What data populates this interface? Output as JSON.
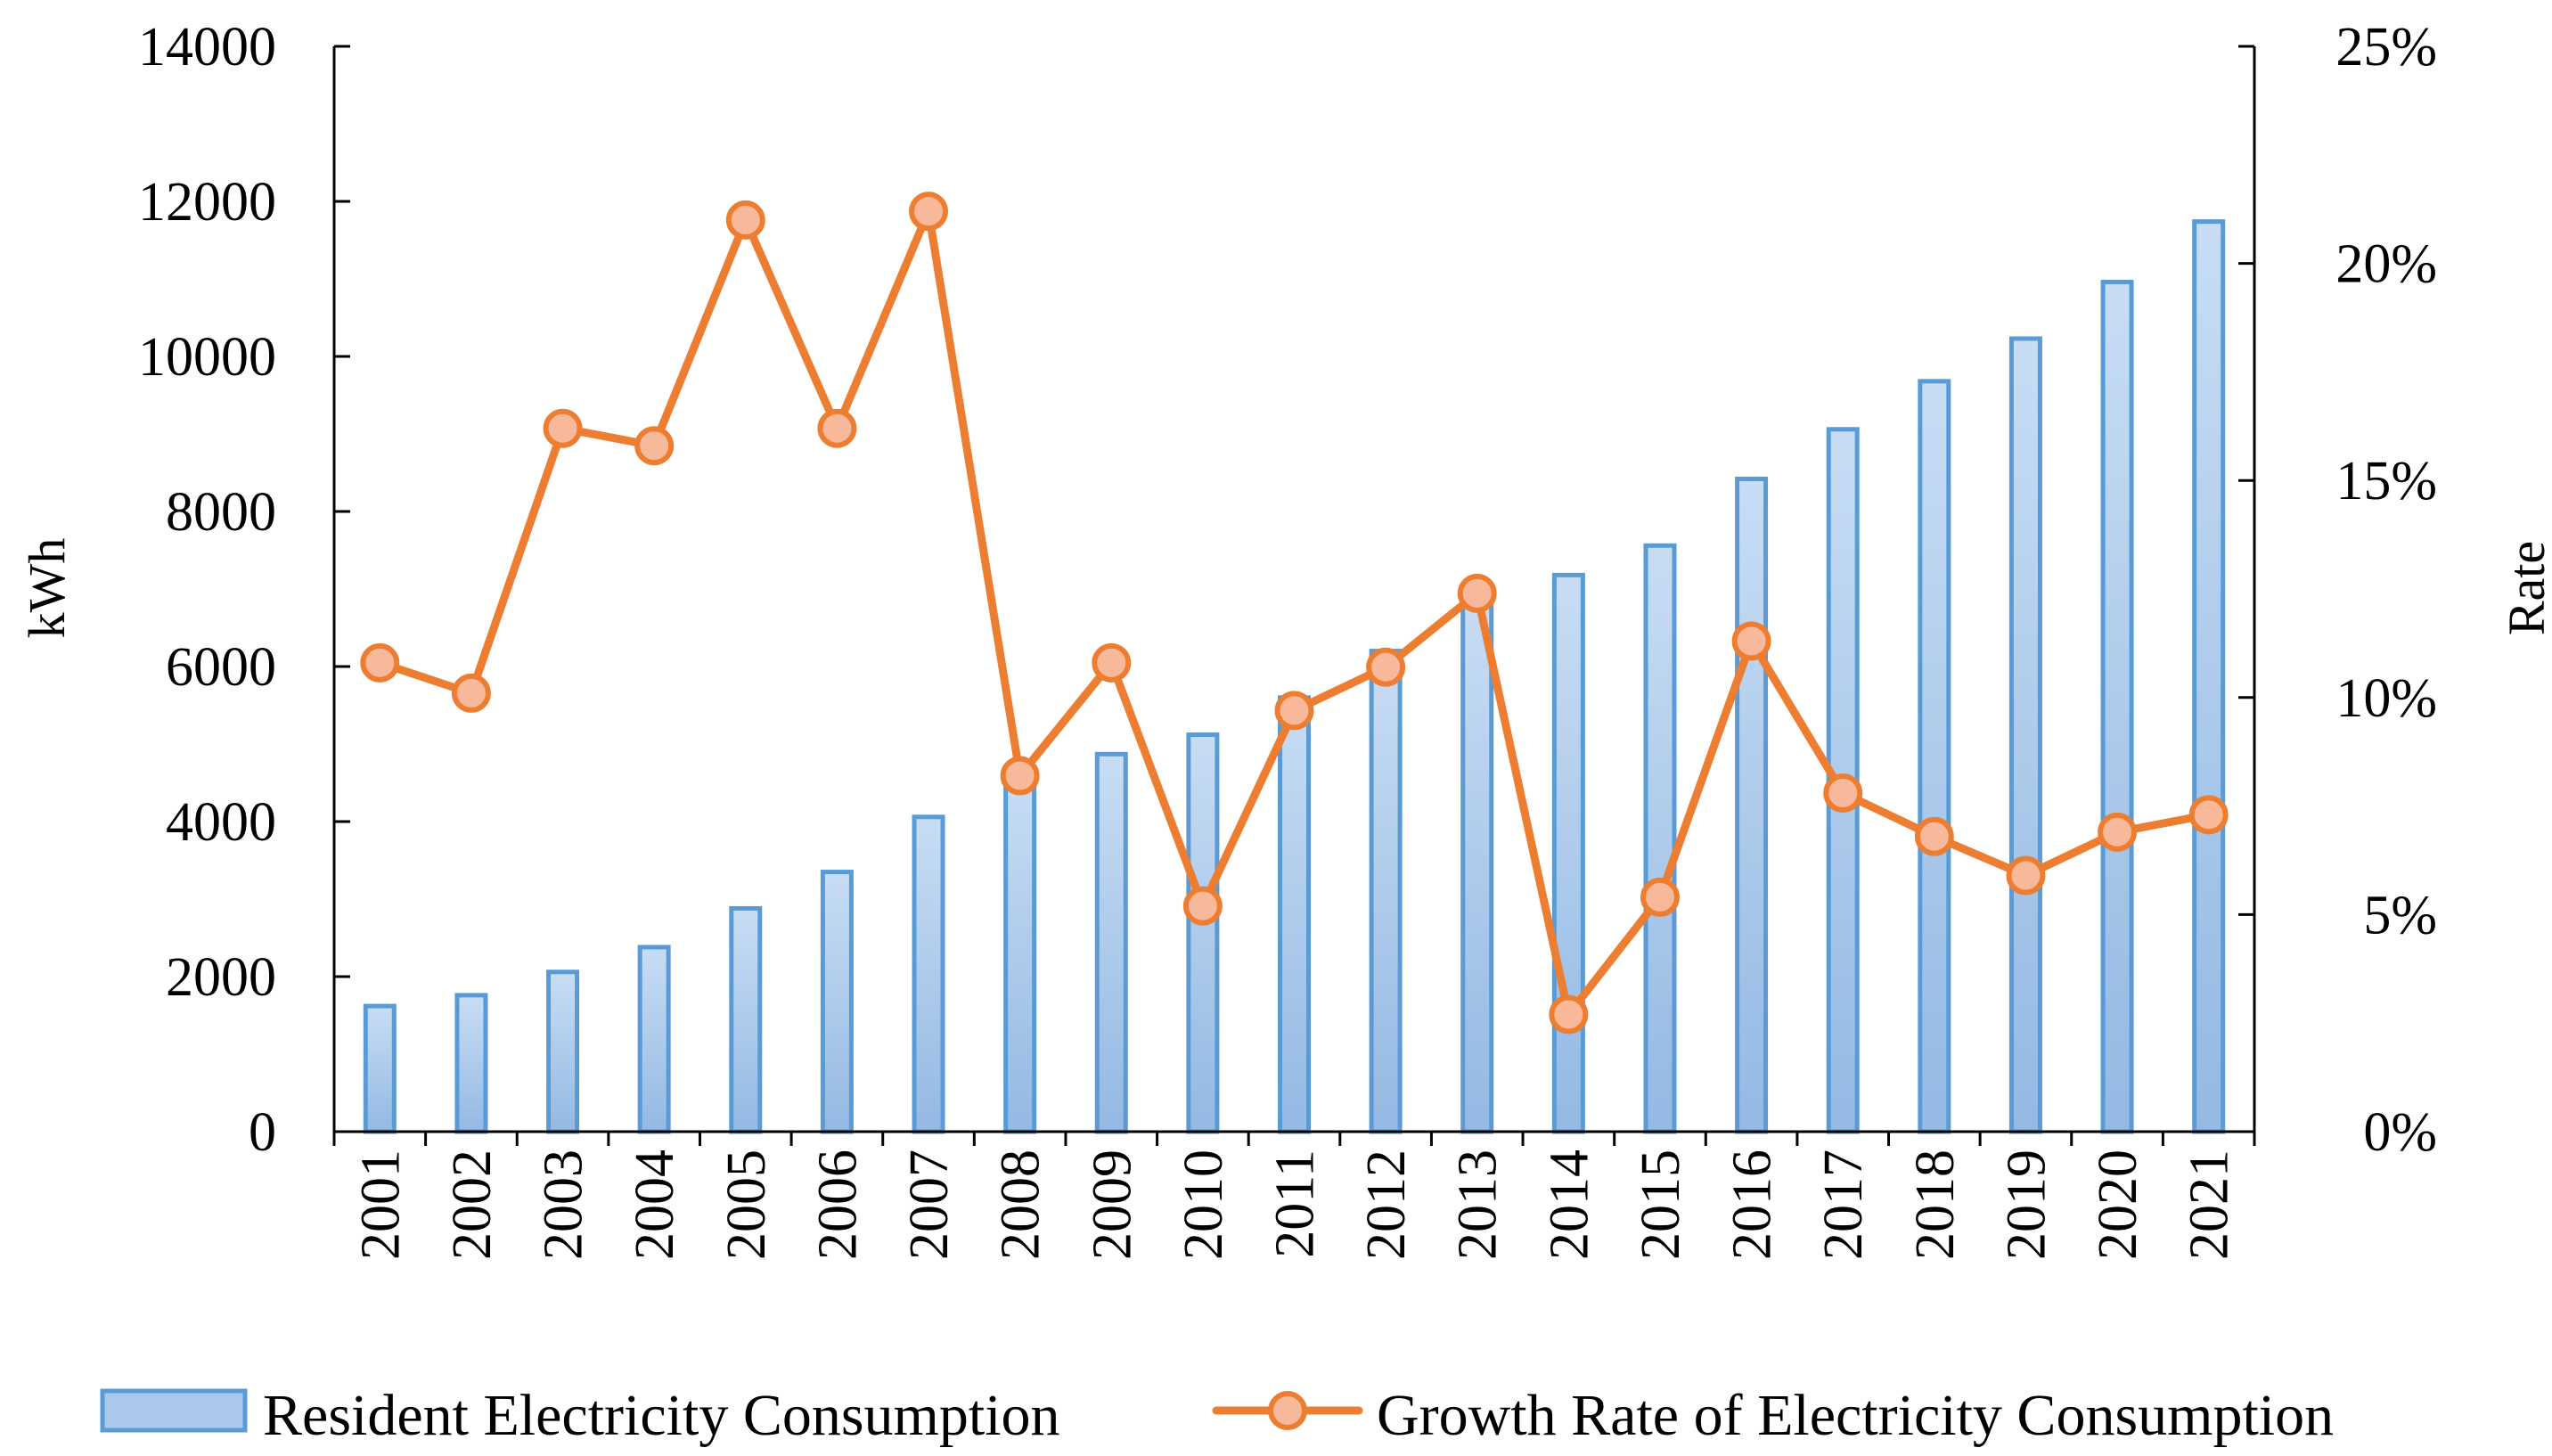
{
  "chart_data": {
    "type": "bar+line",
    "categories": [
      "2001",
      "2002",
      "2003",
      "2004",
      "2005",
      "2006",
      "2007",
      "2008",
      "2009",
      "2010",
      "2011",
      "2012",
      "2013",
      "2014",
      "2015",
      "2016",
      "2017",
      "2018",
      "2019",
      "2020",
      "2021"
    ],
    "series": [
      {
        "name": "Resident Electricity Consumption",
        "type": "bar",
        "axis": "left",
        "color": "#5B9BD5",
        "values": [
          1620,
          1760,
          2060,
          2380,
          2880,
          3350,
          4060,
          4600,
          4870,
          5120,
          5600,
          6200,
          6950,
          7180,
          7560,
          8420,
          9060,
          9680,
          10230,
          10960,
          11740
        ]
      },
      {
        "name": "Growth Rate of Electricity Consumption",
        "type": "line",
        "axis": "right",
        "color": "#ED7D31",
        "marker_fill": "#F8B89A",
        "values": [
          10.8,
          10.1,
          16.2,
          15.8,
          21.0,
          16.2,
          21.2,
          8.2,
          10.8,
          5.2,
          9.7,
          10.7,
          12.4,
          2.7,
          5.4,
          11.3,
          7.8,
          6.8,
          5.9,
          6.9,
          7.3
        ]
      }
    ],
    "left_axis": {
      "label": "kWh",
      "ylim": [
        0,
        14000
      ],
      "ticks": [
        "0",
        "2000",
        "4000",
        "6000",
        "8000",
        "10000",
        "12000",
        "14000"
      ]
    },
    "right_axis": {
      "label": "Rate",
      "ylim": [
        0,
        25
      ],
      "ticks": [
        "0%",
        "5%",
        "10%",
        "15%",
        "20%",
        "25%"
      ]
    },
    "grid": false,
    "legend_position": "bottom"
  }
}
